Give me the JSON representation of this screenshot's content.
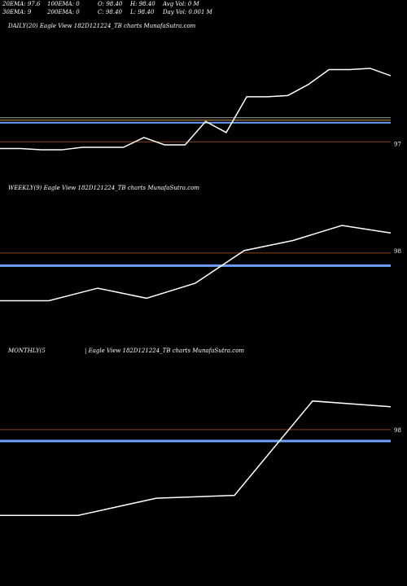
{
  "stats": {
    "ema20": "20EMA: 97.6",
    "ema30": "30EMA: 9",
    "ema100": "100EMA: 0",
    "ema200": "200EMA: 0",
    "open": "O: 98.40",
    "close": "C: 98.40",
    "high": "H: 98.40",
    "low": "L: 98.40",
    "avg_vol": "Avg Vol: 0  M",
    "day_vol": "Day Vol: 0.001 M"
  },
  "chart_data": [
    {
      "type": "line",
      "title": "DAILY(20) Eagle  View  182D121224_TB charts MunafaSutra.com",
      "x": [
        0,
        1,
        2,
        3,
        4,
        5,
        6,
        7,
        8,
        9,
        10,
        11,
        12,
        13,
        14,
        15,
        16,
        17,
        18,
        19
      ],
      "values": [
        96.96,
        96.96,
        96.95,
        96.95,
        96.97,
        96.97,
        96.97,
        97.05,
        96.99,
        96.99,
        97.18,
        97.09,
        97.38,
        97.38,
        97.39,
        97.48,
        97.6,
        97.6,
        97.61,
        97.55
      ],
      "ylim": [
        96.68,
        97.9
      ],
      "tick_labels": [
        {
          "label": "97",
          "value": 97.0
        }
      ],
      "reference_lines": [
        {
          "value": 97.21,
          "color": "#9a9a9a",
          "width": 1
        },
        {
          "value": 97.19,
          "color": "#c8903a",
          "width": 1
        },
        {
          "value": 97.17,
          "color": "#6fa0ff",
          "width": 2
        },
        {
          "value": 97.015,
          "color": "#8b4513",
          "width": 1
        }
      ],
      "line_color": "#ffffff"
    },
    {
      "type": "line",
      "title": "WEEKLY(9) Eagle  View  182D121224_TB charts MunafaSutra.com",
      "x": [
        0,
        1,
        2,
        3,
        4,
        5,
        6,
        7,
        8
      ],
      "values": [
        97.8,
        97.8,
        97.85,
        97.81,
        97.87,
        98,
        98.04,
        98.1,
        98.07
      ],
      "ylim": [
        97.62,
        98.22
      ],
      "tick_labels": [
        {
          "label": "98",
          "value": 98.0
        }
      ],
      "reference_lines": [
        {
          "value": 97.99,
          "color": "#8b4513",
          "width": 1
        },
        {
          "value": 97.94,
          "color": "#6fa0ff",
          "width": 3
        }
      ],
      "line_color": "#ffffff"
    },
    {
      "type": "line",
      "title": "MONTHLY(5",
      "title_suffix": "| Eagle  View  182D121224_TB charts MunafaSutra.com",
      "x": [
        0,
        1,
        2,
        3,
        4,
        5
      ],
      "values": [
        97.7,
        97.7,
        97.76,
        97.77,
        98.1,
        98.08
      ],
      "ylim": [
        97.51,
        98.25
      ],
      "tick_labels": [
        {
          "label": "98",
          "value": 98.0
        }
      ],
      "reference_lines": [
        {
          "value": 98.0,
          "color": "#8b4513",
          "width": 1
        },
        {
          "value": 97.96,
          "color": "#6fa0ff",
          "width": 3
        }
      ],
      "line_color": "#ffffff"
    }
  ]
}
